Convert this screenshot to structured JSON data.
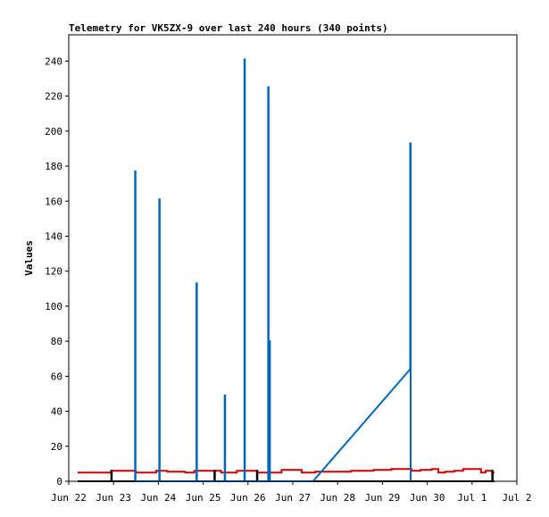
{
  "chart_data": {
    "type": "line",
    "title": "Telemetry for VK5ZX-9 over last 240 hours (340 points)",
    "xlabel": "",
    "ylabel": "Values",
    "xlim": [
      "Jun 22",
      "Jul 2"
    ],
    "ylim": [
      0,
      255
    ],
    "x_ticks": [
      "Jun 22",
      "Jun 23",
      "Jun 24",
      "Jun 25",
      "Jun 26",
      "Jun 27",
      "Jun 28",
      "Jun 29",
      "Jun 30",
      "Jul 1",
      "Jul 2"
    ],
    "y_ticks": [
      0,
      20,
      40,
      60,
      80,
      100,
      120,
      140,
      160,
      180,
      200,
      220,
      240
    ],
    "grid": false,
    "legend": "none",
    "series": [
      {
        "color": "#cc0000",
        "points": [
          [
            0.2,
            5
          ],
          [
            0.95,
            5
          ],
          [
            0.95,
            6
          ],
          [
            1.5,
            6
          ],
          [
            1.5,
            5
          ],
          [
            1.95,
            5
          ],
          [
            1.95,
            6
          ],
          [
            2.2,
            6
          ],
          [
            2.2,
            5.5
          ],
          [
            2.6,
            5.5
          ],
          [
            2.6,
            5
          ],
          [
            2.8,
            5
          ],
          [
            2.8,
            6
          ],
          [
            3.4,
            6
          ],
          [
            3.4,
            5
          ],
          [
            3.75,
            5
          ],
          [
            3.75,
            6
          ],
          [
            4.2,
            6
          ],
          [
            4.2,
            5
          ],
          [
            4.75,
            5
          ],
          [
            4.75,
            6.5
          ],
          [
            5.2,
            6.5
          ],
          [
            5.2,
            5
          ],
          [
            5.5,
            5
          ],
          [
            5.5,
            5.5
          ],
          [
            6.3,
            5.5
          ],
          [
            6.3,
            6
          ],
          [
            6.8,
            6
          ],
          [
            6.8,
            6.5
          ],
          [
            7.2,
            6.5
          ],
          [
            7.2,
            7
          ],
          [
            7.65,
            7
          ],
          [
            7.65,
            6
          ],
          [
            7.85,
            6
          ],
          [
            7.85,
            6.5
          ],
          [
            8.1,
            6.5
          ],
          [
            8.1,
            7
          ],
          [
            8.25,
            7
          ],
          [
            8.25,
            5
          ],
          [
            8.4,
            5
          ],
          [
            8.4,
            5.5
          ],
          [
            8.6,
            5.5
          ],
          [
            8.6,
            6
          ],
          [
            8.8,
            6
          ],
          [
            8.8,
            7
          ],
          [
            9.2,
            7
          ],
          [
            9.2,
            5
          ],
          [
            9.3,
            5
          ],
          [
            9.3,
            6
          ],
          [
            9.45,
            6
          ],
          [
            9.45,
            5
          ],
          [
            9.5,
            5
          ]
        ]
      },
      {
        "color": "#000000",
        "points": [
          [
            0.2,
            0
          ],
          [
            0.95,
            0
          ],
          [
            0.95,
            6
          ],
          [
            0.96,
            6
          ],
          [
            0.96,
            0
          ],
          [
            3.25,
            0
          ],
          [
            3.25,
            6
          ],
          [
            3.26,
            6
          ],
          [
            3.26,
            0
          ],
          [
            4.2,
            0
          ],
          [
            4.2,
            6
          ],
          [
            4.21,
            6
          ],
          [
            4.21,
            0
          ],
          [
            9.45,
            0
          ],
          [
            9.45,
            6
          ],
          [
            9.46,
            6
          ],
          [
            9.46,
            0
          ],
          [
            9.5,
            0
          ]
        ]
      },
      {
        "color": "#0066bb",
        "points": [
          [
            1.48,
            0
          ],
          [
            1.48,
            177
          ],
          [
            1.49,
            177
          ],
          [
            1.49,
            0
          ],
          [
            2.02,
            0
          ],
          [
            2.02,
            161
          ],
          [
            2.03,
            161
          ],
          [
            2.03,
            0
          ],
          [
            2.85,
            0
          ],
          [
            2.85,
            113
          ],
          [
            2.86,
            113
          ],
          [
            2.86,
            0
          ],
          [
            3.48,
            0
          ],
          [
            3.48,
            49
          ],
          [
            3.49,
            49
          ],
          [
            3.49,
            0
          ],
          [
            3.92,
            0
          ],
          [
            3.92,
            241
          ],
          [
            3.93,
            241
          ],
          [
            3.93,
            0
          ],
          [
            4.45,
            0
          ],
          [
            4.45,
            225
          ],
          [
            4.46,
            225
          ],
          [
            4.46,
            0
          ],
          [
            4.48,
            0
          ],
          [
            4.48,
            80
          ],
          [
            4.49,
            80
          ],
          [
            4.49,
            0
          ],
          [
            5.45,
            0
          ],
          [
            7.62,
            64
          ],
          [
            7.62,
            193
          ],
          [
            7.63,
            193
          ],
          [
            7.63,
            0
          ]
        ]
      }
    ]
  }
}
